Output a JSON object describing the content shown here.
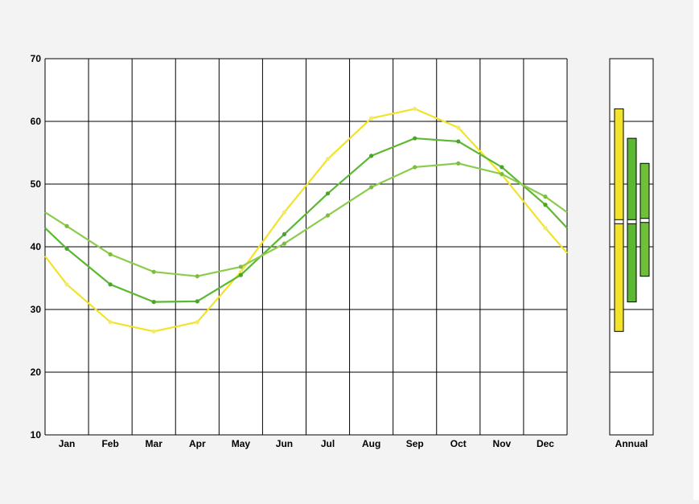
{
  "chart_data": {
    "type": "line",
    "categories": [
      "Jan",
      "Feb",
      "Mar",
      "Apr",
      "May",
      "Jun",
      "Jul",
      "Aug",
      "Sep",
      "Oct",
      "Nov",
      "Dec"
    ],
    "ylim": [
      10,
      70
    ],
    "yticks": [
      10,
      20,
      30,
      40,
      50,
      60,
      70
    ],
    "grid": true,
    "series": [
      {
        "color": "#f2e22a",
        "marker_color": "#f4ea6a",
        "values": [
          34,
          28,
          26.5,
          28,
          36,
          45.5,
          54,
          60.5,
          62,
          59,
          51.5,
          43
        ],
        "edge_start": 38.5,
        "edge_end": 39
      },
      {
        "color": "#5cb832",
        "marker_color": "#4aa428",
        "values": [
          39.7,
          34,
          31.2,
          31.3,
          35.5,
          42,
          48.5,
          54.5,
          57.3,
          56.8,
          52.7,
          46.7
        ],
        "edge_start": 43,
        "edge_end": 43
      },
      {
        "color": "#8ccc4c",
        "marker_color": "#7cbc3e",
        "values": [
          43.3,
          38.8,
          36,
          35.3,
          36.8,
          40.5,
          45,
          49.5,
          52.7,
          53.3,
          51.6,
          48
        ],
        "edge_start": 45.5,
        "edge_end": 45.5
      }
    ],
    "annual": {
      "label": "Annual",
      "bars": [
        {
          "color": "#f2e22a",
          "min": 26.5,
          "max": 62,
          "mean": 44
        },
        {
          "color": "#5cb832",
          "min": 31.2,
          "max": 57.3,
          "mean": 44
        },
        {
          "color": "#6fbf3a",
          "min": 35.3,
          "max": 53.3,
          "mean": 44.2
        }
      ]
    }
  }
}
